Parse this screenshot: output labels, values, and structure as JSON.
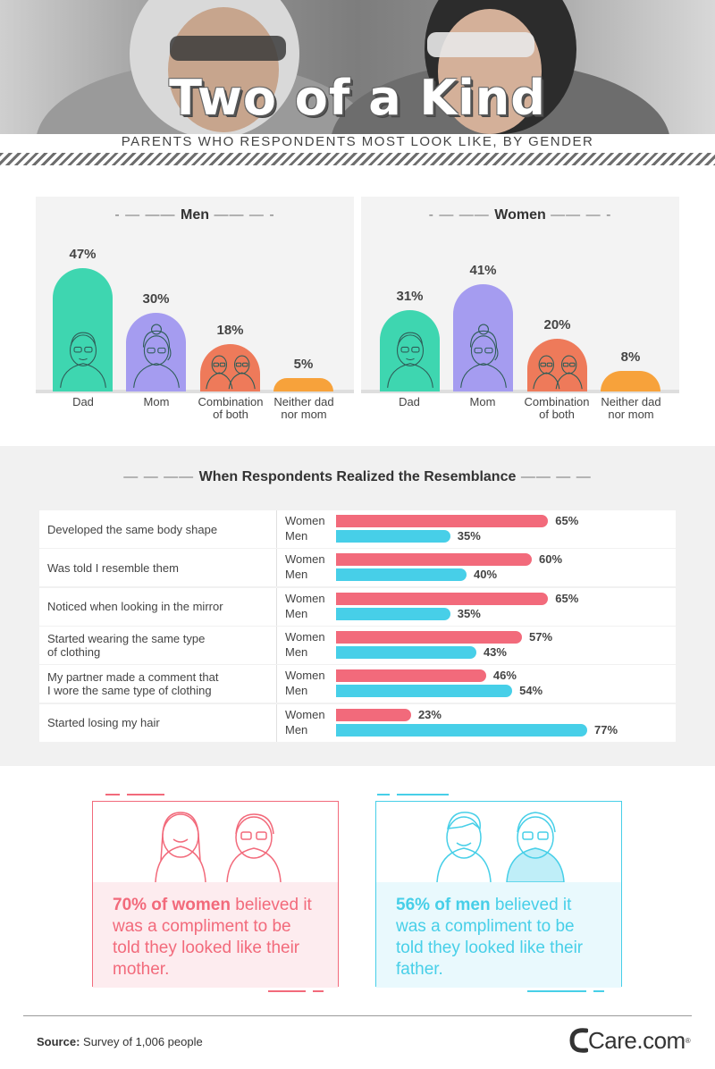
{
  "header": {
    "title": "Two of a Kind",
    "subtitle": "PARENTS WHO RESPONDENTS MOST LOOK LIKE, BY GENDER"
  },
  "chart_data": [
    {
      "type": "bar",
      "title": "Men",
      "categories": [
        "Dad",
        "Mom",
        "Combination of both",
        "Neither dad nor mom"
      ],
      "values": [
        47,
        30,
        18,
        5
      ],
      "unit": "%",
      "colors": [
        "#3ed6b0",
        "#a59cf0",
        "#ee7a5a",
        "#f7a23b"
      ],
      "icons": [
        "man-icon",
        "woman-icon",
        "couple-icon",
        ""
      ]
    },
    {
      "type": "bar",
      "title": "Women",
      "categories": [
        "Dad",
        "Mom",
        "Combination of both",
        "Neither dad nor mom"
      ],
      "values": [
        31,
        41,
        20,
        8
      ],
      "unit": "%",
      "colors": [
        "#3ed6b0",
        "#a59cf0",
        "#ee7a5a",
        "#f7a23b"
      ],
      "icons": [
        "man-icon",
        "woman-icon",
        "couple-icon",
        ""
      ]
    },
    {
      "type": "bar",
      "orientation": "horizontal",
      "title": "When Respondents Realized the Resemblance",
      "categories": [
        "Developed the same body shape",
        "Was told I resemble them",
        "Noticed when looking in the mirror",
        "Started wearing the same type of clothing",
        "My partner made a comment that I wore the same type of clothing",
        "Started losing my hair"
      ],
      "display_labels": [
        "Developed the same body shape",
        "Was told I resemble them",
        "Noticed when looking in the mirror",
        "Started wearing the same type\nof clothing",
        "My partner made a comment that\nI wore the same type of clothing",
        "Started losing my hair"
      ],
      "series": [
        {
          "name": "Women",
          "values": [
            65,
            60,
            65,
            57,
            46,
            23
          ],
          "color": "#f26a7b"
        },
        {
          "name": "Men",
          "values": [
            35,
            40,
            35,
            43,
            54,
            77
          ],
          "color": "#47cfe8"
        }
      ],
      "unit": "%",
      "xlim": [
        0,
        100
      ]
    }
  ],
  "callouts": [
    {
      "highlight": "70% of women",
      "rest": " believed it was a compliment to be told they looked like their mother.",
      "color": "#f26a7b",
      "bg": "#fdecef"
    },
    {
      "highlight": "56% of men",
      "rest": " believed it was a compliment to be told they looked like their father.",
      "color": "#47cfe8",
      "bg": "#e9f9fd"
    }
  ],
  "footer": {
    "source_label": "Source:",
    "source_text": " Survey of 1,006 people",
    "logo": "Care.com",
    "logo_tm": "®"
  }
}
